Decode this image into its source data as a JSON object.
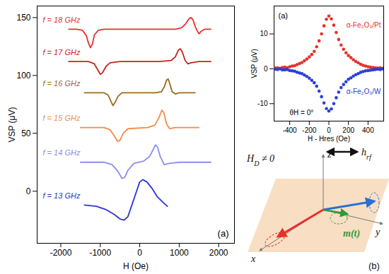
{
  "chart_data": [
    {
      "type": "line",
      "x_label": "H (Oe)",
      "y_label": "VSP (μV)",
      "xlim": [
        -2600,
        2400
      ],
      "xticks": [
        -2000,
        -1000,
        0,
        1000,
        2000
      ],
      "ylim": [
        -45,
        160
      ],
      "yticks": [
        0,
        50,
        100,
        150
      ],
      "annotations": [
        "(a)"
      ],
      "series": [
        {
          "name": "f = 18 GHz",
          "color": "#e8302c",
          "x": [
            -1800,
            -1600,
            -1450,
            -1350,
            -1300,
            -1250,
            -1200,
            -1150,
            -1050,
            -900,
            0,
            900,
            1050,
            1150,
            1250,
            1300,
            1350,
            1420,
            1500,
            1550,
            1650,
            1800
          ],
          "values": [
            140,
            140,
            139,
            134,
            128,
            124,
            127,
            135,
            139,
            140,
            140,
            140,
            141,
            144,
            149,
            150,
            148,
            141,
            136,
            138,
            140,
            140
          ]
        },
        {
          "name": "f = 17 GHz",
          "color": "#c8231e",
          "x": [
            -1800,
            -1300,
            -1150,
            -1050,
            -1000,
            -950,
            -850,
            -750,
            -500,
            500,
            800,
            900,
            980,
            1030,
            1080,
            1150,
            1220,
            1300,
            1500,
            1800
          ],
          "values": [
            112,
            112,
            110,
            104,
            101,
            102,
            108,
            111,
            112,
            112,
            113,
            116,
            122,
            123,
            120,
            113,
            110,
            111,
            112,
            112
          ]
        },
        {
          "name": "f = 16 GHz",
          "color": "#9c6a1c",
          "x": [
            -1400,
            -900,
            -800,
            -720,
            -680,
            -620,
            -550,
            -450,
            400,
            550,
            620,
            680,
            720,
            760,
            820,
            900,
            1000,
            1400
          ],
          "values": [
            85,
            85,
            83,
            77,
            74,
            77,
            82,
            85,
            85,
            86,
            90,
            96,
            97,
            93,
            86,
            84,
            85,
            85
          ]
        },
        {
          "name": "f = 15 GHz",
          "color": "#f58a4b",
          "x": [
            -1500,
            -900,
            -750,
            -650,
            -560,
            -500,
            -420,
            -300,
            200,
            380,
            480,
            560,
            610,
            680,
            760,
            900,
            1500
          ],
          "values": [
            55,
            55,
            53,
            48,
            43,
            44,
            50,
            54,
            55,
            57,
            63,
            70,
            68,
            58,
            54,
            55,
            55
          ]
        },
        {
          "name": "f = 14 GHz",
          "color": "#8c8cf0",
          "x": [
            -1500,
            -900,
            -700,
            -550,
            -450,
            -380,
            -300,
            -150,
            100,
            250,
            340,
            400,
            450,
            520,
            620,
            750,
            1000,
            1800
          ],
          "values": [
            25,
            25,
            23,
            17,
            11,
            12,
            18,
            24,
            26,
            30,
            36,
            40,
            38,
            30,
            23,
            24,
            25,
            25
          ]
        },
        {
          "name": "f = 13 GHz",
          "color": "#2a35d6",
          "x": [
            -1400,
            -1100,
            -850,
            -650,
            -500,
            -400,
            -300,
            -200,
            -100,
            0,
            80,
            180,
            300,
            450,
            600,
            700
          ],
          "values": [
            -12,
            -13,
            -16,
            -20,
            -24,
            -25,
            -22,
            -12,
            -2,
            8,
            10,
            8,
            3,
            -5,
            -10,
            -13
          ]
        }
      ]
    },
    {
      "type": "scatter",
      "x_label": "H - Hres (Oe)",
      "y_label": "VSP (μV)",
      "xlim": [
        -560,
        560
      ],
      "xticks": [
        -400,
        -200,
        0,
        200,
        400
      ],
      "ylim": [
        -15,
        18
      ],
      "yticks": [
        -10,
        0,
        10
      ],
      "annotations": [
        "(a)",
        "θH = 0°"
      ],
      "marker": "circle",
      "x": [
        -550,
        -525,
        -500,
        -475,
        -450,
        -425,
        -400,
        -375,
        -350,
        -325,
        -300,
        -275,
        -250,
        -225,
        -200,
        -175,
        -150,
        -125,
        -100,
        -75,
        -50,
        -25,
        0,
        25,
        50,
        75,
        100,
        125,
        150,
        175,
        200,
        225,
        250,
        275,
        300,
        325,
        350,
        375,
        400,
        425,
        450,
        475,
        500,
        525,
        550
      ],
      "series": [
        {
          "name": "α-Fe₂O₃/Pt",
          "color": "#e8302c",
          "values": [
            0.2,
            0.3,
            0.1,
            0.4,
            0.5,
            0.3,
            0.6,
            0.8,
            0.9,
            1.2,
            1.5,
            1.8,
            2.3,
            2.8,
            3.4,
            4.1,
            5.0,
            6.3,
            8.0,
            10.0,
            12.3,
            14.2,
            15.1,
            14.3,
            12.5,
            10.4,
            8.4,
            6.8,
            5.6,
            4.6,
            3.8,
            3.2,
            2.6,
            2.1,
            1.7,
            1.3,
            1.0,
            0.8,
            0.6,
            0.5,
            0.4,
            0.3,
            0.2,
            0.3,
            0.1
          ]
        },
        {
          "name": "α-Fe₂O₃/W",
          "color": "#2a3fd6",
          "values": [
            -0.1,
            -0.2,
            0.0,
            -0.3,
            -0.3,
            -0.2,
            -0.5,
            -0.6,
            -0.7,
            -1.0,
            -1.2,
            -1.4,
            -1.8,
            -2.2,
            -2.7,
            -3.3,
            -4.0,
            -5.0,
            -6.4,
            -8.0,
            -9.8,
            -11.4,
            -12.1,
            -11.5,
            -10.0,
            -8.3,
            -6.7,
            -5.4,
            -4.5,
            -3.7,
            -3.0,
            -2.6,
            -2.1,
            -1.7,
            -1.4,
            -1.0,
            -0.8,
            -0.6,
            -0.5,
            -0.4,
            -0.3,
            -0.2,
            -0.1,
            -0.2,
            0.0
          ]
        }
      ]
    }
  ],
  "diagram": {
    "axis_x": "x",
    "axis_y": "y",
    "axis_z": "z",
    "field_label": {
      "main": "H",
      "sub": "D",
      "rest": " ≠ 0"
    },
    "rf_label": {
      "main": "h",
      "sub": "rf"
    },
    "m_label": "m(t)",
    "panel": "(b)"
  }
}
